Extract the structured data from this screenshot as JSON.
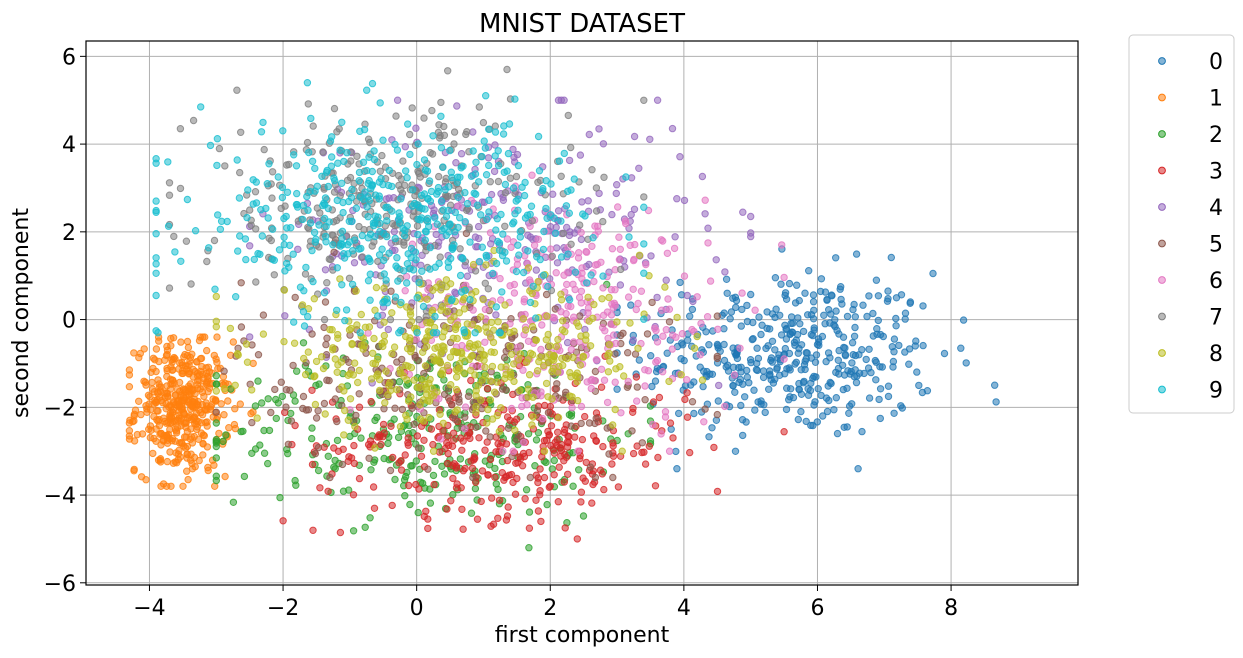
{
  "chart_data": {
    "type": "scatter",
    "title": "MNIST DATASET",
    "xlabel": "first component",
    "ylabel": "second component",
    "xlim": [
      -4.95,
      9.9
    ],
    "ylim": [
      -6.05,
      6.35
    ],
    "xticks": [
      -4,
      -2,
      0,
      2,
      4,
      6,
      8
    ],
    "yticks": [
      -6,
      -4,
      -2,
      0,
      2,
      4,
      6
    ],
    "xtick_labels": [
      "−4",
      "−2",
      "0",
      "2",
      "4",
      "6",
      "8"
    ],
    "ytick_labels": [
      "−6",
      "−4",
      "−2",
      "0",
      "2",
      "4",
      "6"
    ],
    "grid": true,
    "legend_position": "outside-right-top",
    "marker_alpha": 0.55,
    "series": [
      {
        "name": "0",
        "color": "#1f77b4",
        "centroid": [
          5.6,
          -0.8
        ],
        "spread": [
          1.1,
          0.95
        ],
        "count": 420,
        "range_x": [
          3.0,
          9.3
        ],
        "range_y": [
          -3.4,
          2.4
        ]
      },
      {
        "name": "1",
        "color": "#ff7f0e",
        "centroid": [
          -3.5,
          -2.0
        ],
        "spread": [
          0.35,
          0.75
        ],
        "count": 420,
        "range_x": [
          -4.3,
          -2.3
        ],
        "range_y": [
          -3.8,
          -0.4
        ]
      },
      {
        "name": "2",
        "color": "#2ca02c",
        "centroid": [
          0.2,
          -2.6
        ],
        "spread": [
          1.6,
          1.0
        ],
        "count": 300,
        "range_x": [
          -3.0,
          3.5
        ],
        "range_y": [
          -5.2,
          0.8
        ]
      },
      {
        "name": "3",
        "color": "#d62728",
        "centroid": [
          1.3,
          -2.9
        ],
        "spread": [
          1.4,
          0.8
        ],
        "count": 320,
        "range_x": [
          -2.0,
          5.5
        ],
        "range_y": [
          -5.0,
          -0.3
        ]
      },
      {
        "name": "4",
        "color": "#9467bd",
        "centroid": [
          1.2,
          2.0
        ],
        "spread": [
          1.6,
          1.3
        ],
        "count": 260,
        "range_x": [
          -2.5,
          5.0
        ],
        "range_y": [
          -1.5,
          5.0
        ]
      },
      {
        "name": "5",
        "color": "#8c564b",
        "centroid": [
          0.6,
          -1.2
        ],
        "spread": [
          1.6,
          1.1
        ],
        "count": 260,
        "range_x": [
          -3.0,
          4.5
        ],
        "range_y": [
          -3.6,
          2.0
        ]
      },
      {
        "name": "6",
        "color": "#e377c2",
        "centroid": [
          2.3,
          0.2
        ],
        "spread": [
          1.3,
          1.3
        ],
        "count": 300,
        "range_x": [
          -1.0,
          5.5
        ],
        "range_y": [
          -3.0,
          3.4
        ]
      },
      {
        "name": "7",
        "color": "#7f7f7f",
        "centroid": [
          -0.5,
          2.6
        ],
        "spread": [
          1.4,
          1.1
        ],
        "count": 320,
        "range_x": [
          -3.7,
          3.4
        ],
        "range_y": [
          0.0,
          5.7
        ]
      },
      {
        "name": "8",
        "color": "#bcbd22",
        "centroid": [
          0.6,
          -0.8
        ],
        "spread": [
          1.5,
          0.8
        ],
        "count": 420,
        "range_x": [
          -3.0,
          5.0
        ],
        "range_y": [
          -3.0,
          1.8
        ]
      },
      {
        "name": "9",
        "color": "#17becf",
        "centroid": [
          -0.3,
          2.3
        ],
        "spread": [
          1.5,
          1.1
        ],
        "count": 480,
        "range_x": [
          -3.9,
          3.4
        ],
        "range_y": [
          -0.3,
          5.4
        ]
      }
    ]
  }
}
